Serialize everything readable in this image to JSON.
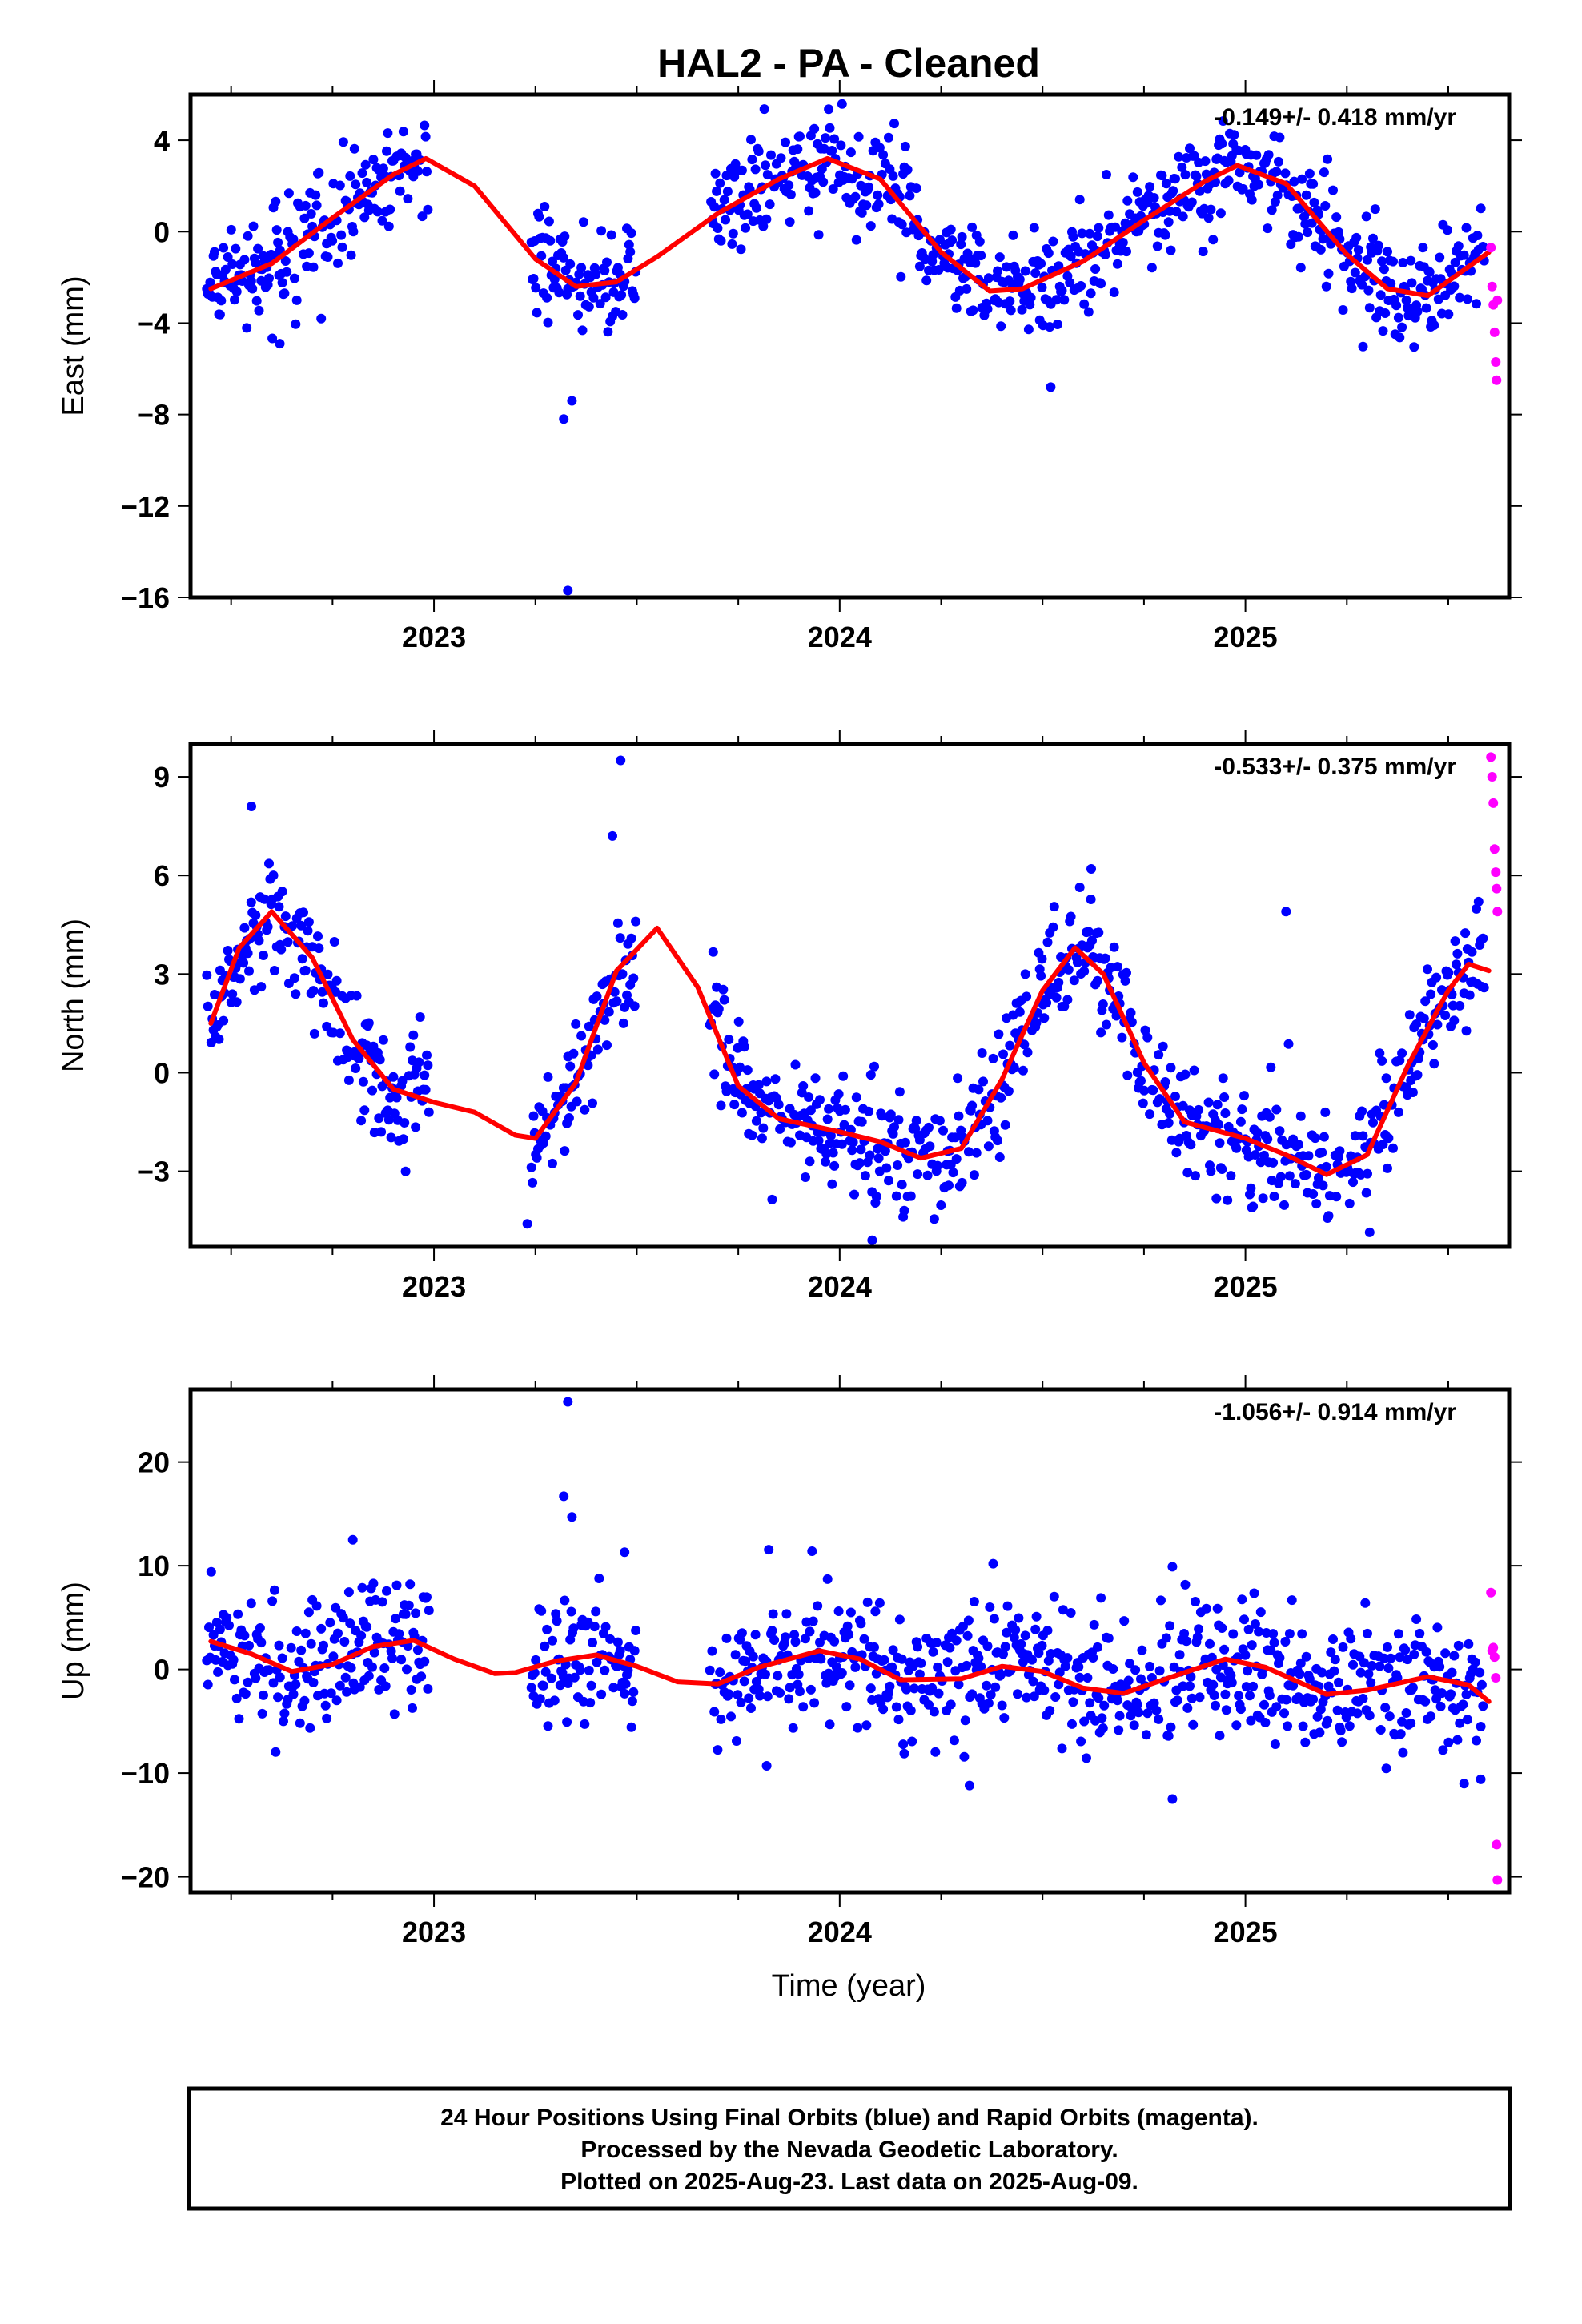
{
  "title": "HAL2  - PA - Cleaned",
  "xlabel": "Time (year)",
  "footer": [
    "24 Hour Positions Using Final Orbits (blue) and Rapid Orbits (magenta).",
    "Processed by the Nevada Geodetic Laboratory.",
    "Plotted on 2025-Aug-23. Last data on 2025-Aug-09."
  ],
  "colors": {
    "final": "#0000ff",
    "rapid": "#ff00ff",
    "model": "#ff0000",
    "axis": "#000000"
  },
  "chart_data": [
    {
      "type": "scatter",
      "component": "East",
      "ylabel": "East (mm)",
      "rate": "-0.149+/- 0.418 mm/yr",
      "xlim": [
        2022.4,
        2025.65
      ],
      "ylim": [
        -16,
        6
      ],
      "x_ticks": [
        2023,
        2024,
        2025
      ],
      "y_ticks": [
        -16,
        -12,
        -8,
        -4,
        0,
        4
      ],
      "y_tick_labels": [
        "−16",
        "−12",
        "−8",
        "−4",
        "0",
        "4"
      ],
      "model": {
        "name": "seasonal fit",
        "x": [
          2022.45,
          2022.6,
          2022.75,
          2022.9,
          2022.98,
          2023.1,
          2023.25,
          2023.35,
          2023.45,
          2023.55,
          2023.7,
          2023.85,
          2023.97,
          2024.1,
          2024.25,
          2024.37,
          2024.45,
          2024.6,
          2024.75,
          2024.9,
          2024.98,
          2025.1,
          2025.25,
          2025.35,
          2025.45,
          2025.6
        ],
        "y": [
          -2.5,
          -1.4,
          0.6,
          2.5,
          3.2,
          2.0,
          -1.2,
          -2.4,
          -2.2,
          -1.1,
          0.8,
          2.3,
          3.2,
          2.3,
          -0.9,
          -2.6,
          -2.5,
          -1.3,
          0.5,
          2.2,
          2.9,
          2.1,
          -1.0,
          -2.5,
          -2.8,
          -0.9
        ]
      },
      "final": {
        "segments": [
          [
            2022.44,
            2022.99
          ],
          [
            2023.24,
            2023.5
          ],
          [
            2023.68,
            2025.59
          ]
        ],
        "std": 1.15,
        "outliers": [
          [
            2023.33,
            -15.7
          ],
          [
            2023.32,
            -8.2
          ],
          [
            2023.34,
            -7.4
          ],
          [
            2024.52,
            -6.8
          ],
          [
            2022.62,
            -4.9
          ]
        ]
      },
      "rapid": {
        "x": [
          2025.605,
          2025.608,
          2025.611,
          2025.614,
          2025.617,
          2025.619,
          2025.621
        ],
        "y": [
          -0.7,
          -2.4,
          -3.2,
          -4.4,
          -5.7,
          -6.5,
          -3.0
        ]
      }
    },
    {
      "type": "scatter",
      "component": "North",
      "ylabel": "North (mm)",
      "rate": "-0.533+/- 0.375 mm/yr",
      "xlim": [
        2022.4,
        2025.65
      ],
      "ylim": [
        -5.3,
        10
      ],
      "x_ticks": [
        2023,
        2024,
        2025
      ],
      "y_ticks": [
        -3,
        0,
        3,
        6,
        9
      ],
      "y_tick_labels": [
        "−3",
        "0",
        "3",
        "6",
        "9"
      ],
      "model": {
        "name": "seasonal fit",
        "x": [
          2022.45,
          2022.52,
          2022.6,
          2022.7,
          2022.8,
          2022.9,
          2023.0,
          2023.1,
          2023.2,
          2023.25,
          2023.35,
          2023.45,
          2023.55,
          2023.65,
          2023.75,
          2023.85,
          2024.0,
          2024.1,
          2024.2,
          2024.3,
          2024.4,
          2024.5,
          2024.58,
          2024.65,
          2024.75,
          2024.85,
          2025.0,
          2025.1,
          2025.2,
          2025.3,
          2025.4,
          2025.5,
          2025.55,
          2025.6
        ],
        "y": [
          1.5,
          3.8,
          4.9,
          3.5,
          1.0,
          -0.5,
          -0.9,
          -1.2,
          -1.9,
          -2.0,
          -0.3,
          3.1,
          4.4,
          2.6,
          -0.4,
          -1.4,
          -1.8,
          -2.1,
          -2.6,
          -2.3,
          -0.2,
          2.5,
          3.8,
          3.0,
          0.3,
          -1.5,
          -2.0,
          -2.5,
          -3.1,
          -2.5,
          0.2,
          2.5,
          3.3,
          3.1
        ]
      },
      "final": {
        "segments": [
          [
            2022.44,
            2022.99
          ],
          [
            2023.24,
            2023.5
          ],
          [
            2023.68,
            2025.59
          ]
        ],
        "std": 0.9,
        "outliers": [
          [
            2022.55,
            8.1
          ],
          [
            2023.46,
            9.5
          ],
          [
            2023.44,
            7.2
          ],
          [
            2023.23,
            -4.6
          ],
          [
            2024.08,
            -5.1
          ],
          [
            2024.62,
            6.2
          ],
          [
            2025.1,
            4.9
          ]
        ]
      },
      "rapid": {
        "x": [
          2025.605,
          2025.608,
          2025.611,
          2025.614,
          2025.617,
          2025.619,
          2025.621
        ],
        "y": [
          9.6,
          9.0,
          8.2,
          6.8,
          6.1,
          5.6,
          4.9
        ]
      }
    },
    {
      "type": "scatter",
      "component": "Up",
      "ylabel": "Up (mm)",
      "rate": "-1.056+/- 0.914 mm/yr",
      "xlim": [
        2022.4,
        2025.65
      ],
      "ylim": [
        -21.5,
        27
      ],
      "x_ticks": [
        2023,
        2024,
        2025
      ],
      "y_ticks": [
        -20,
        -10,
        0,
        10,
        20
      ],
      "y_tick_labels": [
        "−20",
        "−10",
        "0",
        "10",
        "20"
      ],
      "model": {
        "name": "seasonal fit",
        "x": [
          2022.45,
          2022.55,
          2022.65,
          2022.75,
          2022.85,
          2022.95,
          2023.05,
          2023.15,
          2023.2,
          2023.3,
          2023.4,
          2023.5,
          2023.6,
          2023.7,
          2023.8,
          2023.95,
          2024.05,
          2024.15,
          2024.3,
          2024.4,
          2024.5,
          2024.6,
          2024.7,
          2024.85,
          2024.95,
          2025.05,
          2025.2,
          2025.3,
          2025.45,
          2025.55,
          2025.6
        ],
        "y": [
          2.7,
          1.5,
          -0.2,
          0.5,
          2.2,
          2.8,
          1.0,
          -0.4,
          -0.3,
          0.8,
          1.4,
          0.3,
          -1.2,
          -1.4,
          0.2,
          1.8,
          1.0,
          -1.0,
          -0.9,
          0.3,
          -0.2,
          -1.8,
          -2.3,
          -0.3,
          1.0,
          0.2,
          -2.4,
          -2.0,
          -0.7,
          -1.5,
          -3.1
        ]
      },
      "final": {
        "segments": [
          [
            2022.44,
            2022.99
          ],
          [
            2023.24,
            2023.5
          ],
          [
            2023.68,
            2025.59
          ]
        ],
        "std": 3.2,
        "outliers": [
          [
            2023.33,
            25.8
          ],
          [
            2023.32,
            16.7
          ],
          [
            2023.34,
            14.7
          ],
          [
            2022.8,
            12.5
          ],
          [
            2023.47,
            11.3
          ],
          [
            2024.82,
            -12.5
          ],
          [
            2023.82,
            -9.3
          ],
          [
            2024.32,
            -11.2
          ],
          [
            2025.58,
            -10.6
          ],
          [
            2024.82,
            9.9
          ]
        ]
      },
      "rapid": {
        "x": [
          2025.605,
          2025.608,
          2025.611,
          2025.614,
          2025.617,
          2025.619,
          2025.621
        ],
        "y": [
          7.4,
          1.8,
          2.1,
          1.2,
          -0.8,
          -16.9,
          -20.3
        ]
      }
    }
  ]
}
